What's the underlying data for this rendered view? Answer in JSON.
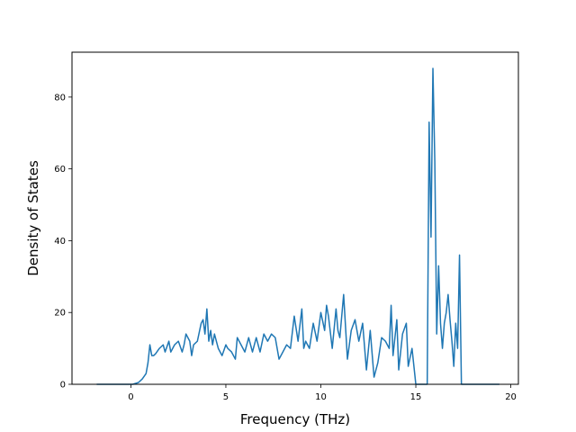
{
  "chart_data": {
    "type": "line",
    "title": "",
    "xlabel": "Frequency (THz)",
    "ylabel": "Density of States",
    "xlim": [
      -3.1,
      20.4
    ],
    "ylim": [
      0,
      92.5
    ],
    "xticks": [
      0,
      5,
      10,
      15,
      20
    ],
    "yticks": [
      0,
      20,
      40,
      60,
      80
    ],
    "grid": false,
    "line_color": "#1f77b4",
    "series": [
      {
        "x": [
          -1.8,
          -1.0,
          -0.3,
          0.1,
          0.4,
          0.6,
          0.8,
          0.9,
          1.0,
          1.1,
          1.2,
          1.3,
          1.5,
          1.7,
          1.8,
          2.0,
          2.1,
          2.2,
          2.3,
          2.5,
          2.7,
          2.8,
          2.9,
          3.1,
          3.2,
          3.3,
          3.5,
          3.7,
          3.8,
          3.9,
          4.0,
          4.1,
          4.2,
          4.3,
          4.4,
          4.6,
          4.8,
          5.0,
          5.1,
          5.3,
          5.5,
          5.6,
          5.8,
          6.0,
          6.2,
          6.4,
          6.6,
          6.8,
          7.0,
          7.2,
          7.4,
          7.6,
          7.8,
          8.0,
          8.2,
          8.4,
          8.6,
          8.8,
          9.0,
          9.1,
          9.2,
          9.4,
          9.6,
          9.8,
          10.0,
          10.2,
          10.3,
          10.4,
          10.6,
          10.8,
          10.9,
          11.0,
          11.2,
          11.4,
          11.6,
          11.8,
          12.0,
          12.2,
          12.4,
          12.6,
          12.8,
          13.0,
          13.2,
          13.4,
          13.6,
          13.7,
          13.8,
          14.0,
          14.1,
          14.3,
          14.5,
          14.6,
          14.8,
          15.0,
          15.1,
          15.2,
          15.4,
          15.6,
          15.7,
          15.8,
          15.9,
          16.0,
          16.1,
          16.2,
          16.3,
          16.4,
          16.5,
          16.6,
          16.7,
          16.8,
          16.9,
          17.0,
          17.1,
          17.2,
          17.3,
          17.4,
          17.5,
          17.6,
          17.7,
          18.0,
          18.5,
          19.4
        ],
        "y": [
          0,
          0,
          0,
          0,
          0.5,
          1.5,
          3,
          6,
          11,
          8,
          8,
          8.5,
          10,
          11,
          9,
          12,
          9,
          10,
          11,
          12,
          9,
          11,
          14,
          12,
          8,
          11,
          12,
          17,
          18,
          14,
          21,
          12,
          15,
          11,
          14,
          10,
          8,
          11,
          10,
          9,
          7,
          13,
          11,
          9,
          13,
          9,
          13,
          9,
          14,
          12,
          14,
          13,
          7,
          9,
          11,
          10,
          19,
          12,
          21,
          10,
          12,
          10,
          17,
          12,
          20,
          15,
          22,
          19,
          10,
          21,
          15,
          13,
          25,
          7,
          15,
          18,
          12,
          17,
          4,
          15,
          2,
          6,
          13,
          12,
          10,
          22,
          8,
          18,
          4,
          14,
          17,
          5,
          10,
          0,
          0,
          0,
          0,
          0,
          73,
          41,
          88,
          62,
          14,
          33,
          17,
          10,
          17,
          20,
          25,
          18,
          12,
          5,
          17,
          10,
          36,
          0,
          0,
          0,
          0,
          0,
          0,
          0
        ]
      }
    ]
  }
}
